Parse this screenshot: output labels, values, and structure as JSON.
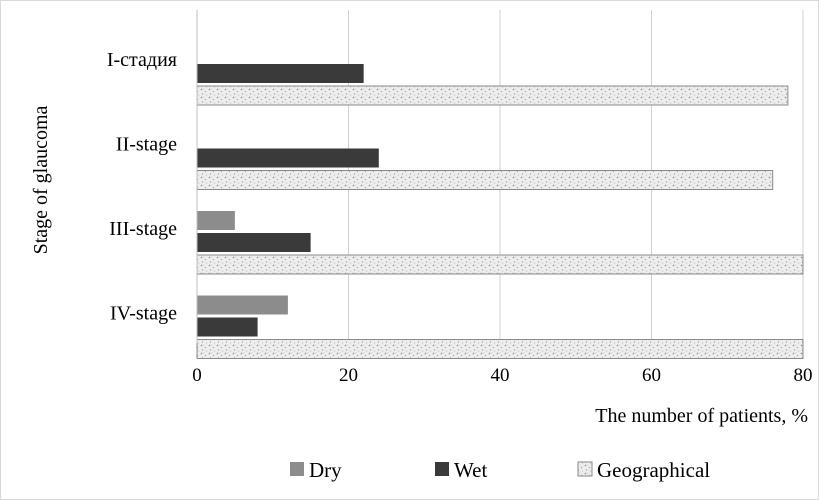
{
  "chart_data": {
    "type": "bar",
    "orientation": "horizontal",
    "categories": [
      "I-стадия",
      "II-stage",
      "III-stage",
      "IV-stage"
    ],
    "series": [
      {
        "name": "Dry",
        "color": "#8c8c8c",
        "pattern": "solid",
        "values": [
          0,
          0,
          5,
          12
        ]
      },
      {
        "name": "Wet",
        "color": "#3a3a3a",
        "pattern": "solid",
        "values": [
          22,
          24,
          15,
          8
        ]
      },
      {
        "name": "Geographical",
        "color": "#e6e6e6",
        "pattern": "speckled",
        "values": [
          78,
          76,
          80,
          80
        ]
      }
    ],
    "xlabel": "The number of patients, %",
    "ylabel": "Stage of glaucoma",
    "xlim": [
      0,
      80
    ],
    "xticks": [
      "0",
      "20",
      "40",
      "60",
      "80"
    ],
    "grid": "vertical",
    "legend_position": "bottom"
  }
}
